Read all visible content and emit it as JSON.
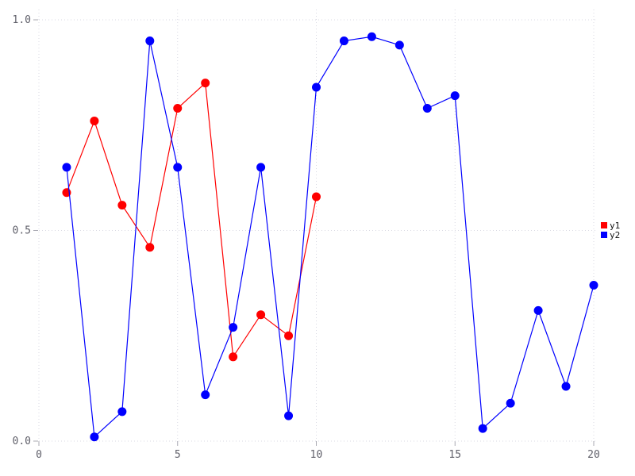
{
  "chart_data": {
    "type": "line",
    "title": "",
    "xlabel": "",
    "ylabel": "",
    "xlim": [
      0,
      20
    ],
    "ylim": [
      0.0,
      1.0
    ],
    "grid": "dotted",
    "legend_position": "right-middle",
    "x_ticks": [
      0,
      5,
      10,
      15,
      20
    ],
    "x_tick_labels": [
      "0",
      "5",
      "10",
      "15",
      "20"
    ],
    "y_ticks": [
      0.0,
      0.5,
      1.0
    ],
    "y_tick_labels": [
      "0.0",
      "0.5",
      "1.0"
    ],
    "series": [
      {
        "name": "y1",
        "color": "#ff0000",
        "marker": "filled-circle",
        "x": [
          1,
          2,
          3,
          4,
          5,
          6,
          7,
          8,
          9,
          10
        ],
        "values": [
          0.59,
          0.76,
          0.56,
          0.46,
          0.79,
          0.85,
          0.2,
          0.3,
          0.25,
          0.58
        ]
      },
      {
        "name": "y2",
        "color": "#0000ff",
        "marker": "filled-circle",
        "x": [
          1,
          2,
          3,
          4,
          5,
          6,
          7,
          8,
          9,
          10,
          11,
          12,
          13,
          14,
          15,
          16,
          17,
          18,
          19,
          20
        ],
        "values": [
          0.65,
          0.01,
          0.07,
          0.95,
          0.65,
          0.11,
          0.27,
          0.65,
          0.06,
          0.84,
          0.95,
          0.96,
          0.94,
          0.79,
          0.82,
          0.03,
          0.09,
          0.31,
          0.13,
          0.37
        ]
      }
    ]
  },
  "legend": {
    "items": [
      {
        "label": "y1",
        "color": "#ff0000"
      },
      {
        "label": "y2",
        "color": "#0000ff"
      }
    ]
  }
}
